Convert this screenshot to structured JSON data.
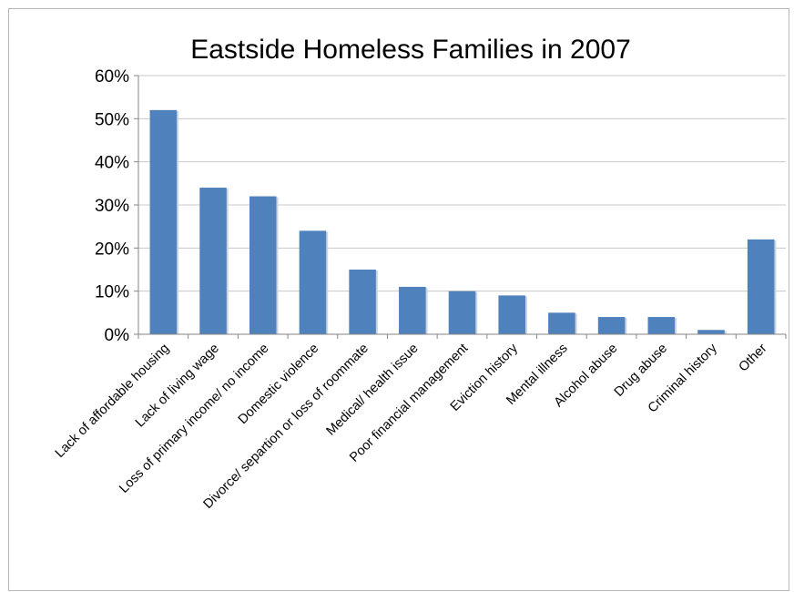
{
  "chart_data": {
    "type": "bar",
    "title": "Eastside Homeless Families in 2007",
    "xlabel": "",
    "ylabel": "",
    "categories": [
      "Lack of affordable housing",
      "Lack of living wage",
      "Loss of primary income/ no income",
      "Domestic violence",
      "Divorce/ separtion or loss of roommate",
      "Medical/ health issue",
      "Poor financial management",
      "Eviction history",
      "Mental illness",
      "Alcohol abuse",
      "Drug abuse",
      "Criminal history",
      "Other"
    ],
    "values": [
      52,
      34,
      32,
      24,
      15,
      11,
      10,
      9,
      5,
      4,
      4,
      1,
      22
    ],
    "unit": "%",
    "ylim": [
      0,
      60
    ],
    "yticks": [
      "0%",
      "10%",
      "20%",
      "30%",
      "40%",
      "50%",
      "60%"
    ],
    "grid": true,
    "legend": "none",
    "bar_color": "#4f81bd"
  }
}
